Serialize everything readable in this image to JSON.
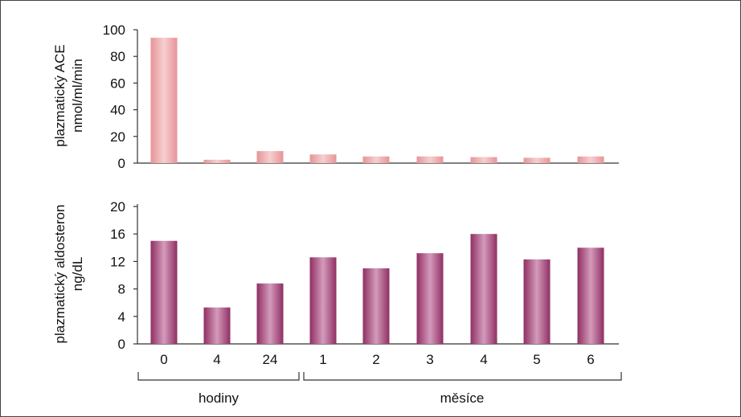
{
  "chart_data": [
    {
      "type": "bar",
      "ylabel_line1": "plazmatický ACE",
      "ylabel_line2": "nmol/ml/min",
      "ylim": [
        0,
        100
      ],
      "yticks": [
        0,
        20,
        40,
        60,
        80,
        100
      ],
      "categories": [
        "0",
        "4",
        "24",
        "1",
        "2",
        "3",
        "4",
        "5",
        "6"
      ],
      "values": [
        94,
        2.5,
        9,
        6.5,
        5,
        5,
        4.5,
        4,
        5
      ],
      "color": "#e8a7a9"
    },
    {
      "type": "bar",
      "ylabel_line1": "plazmatický aldosteron",
      "ylabel_line2": "ng/dL",
      "ylim": [
        0,
        20
      ],
      "yticks": [
        0,
        4,
        8,
        12,
        16,
        20
      ],
      "categories": [
        "0",
        "4",
        "24",
        "1",
        "2",
        "3",
        "4",
        "5",
        "6"
      ],
      "values": [
        15,
        5.3,
        8.8,
        12.6,
        11,
        13.2,
        16,
        12.3,
        14
      ],
      "color": "#a8467b"
    }
  ],
  "groups": [
    {
      "label": "hodiny"
    },
    {
      "label": "měsíce"
    }
  ]
}
